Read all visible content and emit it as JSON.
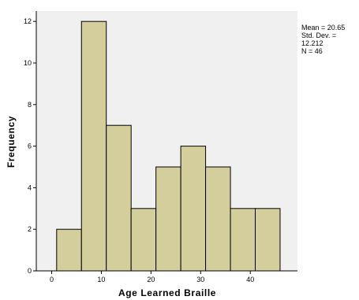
{
  "chart_data": {
    "type": "bar",
    "subtype": "histogram",
    "title": "",
    "xlabel": "Age  Learned  Braille",
    "ylabel": "Frequency",
    "bins": [
      {
        "start": 1,
        "end": 6,
        "value": 2
      },
      {
        "start": 6,
        "end": 11,
        "value": 12
      },
      {
        "start": 11,
        "end": 16,
        "value": 7
      },
      {
        "start": 16,
        "end": 21,
        "value": 3
      },
      {
        "start": 21,
        "end": 26,
        "value": 5
      },
      {
        "start": 26,
        "end": 31,
        "value": 6
      },
      {
        "start": 31,
        "end": 36,
        "value": 5
      },
      {
        "start": 36,
        "end": 41,
        "value": 3
      },
      {
        "start": 41,
        "end": 46,
        "value": 3
      }
    ],
    "xlim": [
      -3.1,
      49.5
    ],
    "ylim": [
      0,
      12.5
    ],
    "xticks": [
      0,
      10,
      20,
      30,
      40
    ],
    "yticks": [
      0,
      2,
      4,
      6,
      8,
      10,
      12
    ],
    "bar_color": "#d3ce9c",
    "bar_edge_color": "#000000",
    "plot_background": "#f0f0f0",
    "grid": false,
    "stats": {
      "mean": "Mean = 20.65",
      "std_dev": "Std. Dev. = 12.212",
      "n": "N = 46"
    }
  }
}
